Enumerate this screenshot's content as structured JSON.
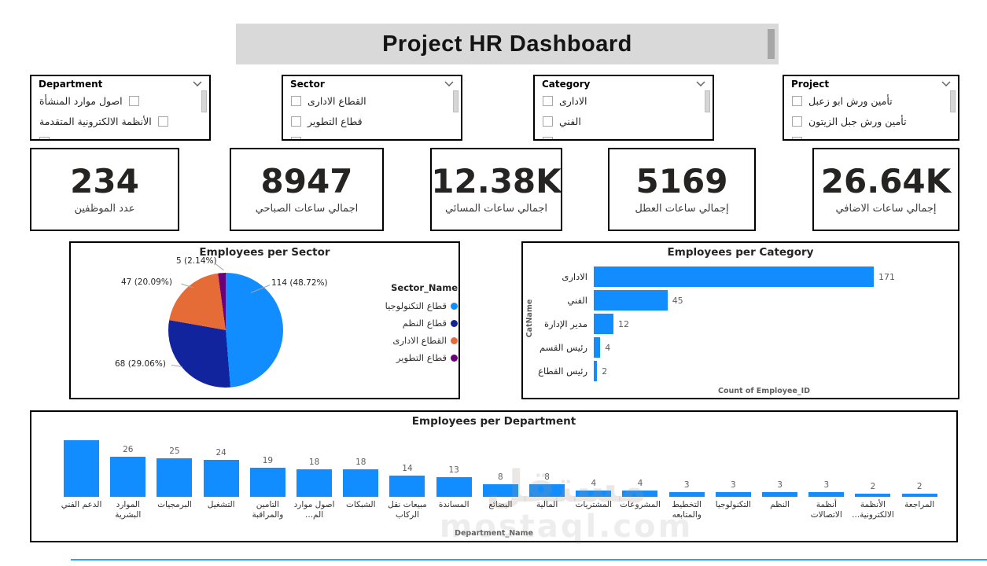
{
  "title": "Project HR Dashboard",
  "slicers": [
    {
      "label": "Department",
      "items": [
        "اصول موارد المنشأة",
        "الأنظمة الالكترونية المتقدمة"
      ]
    },
    {
      "label": "Sector",
      "items": [
        "القطاع الادارى",
        "قطاع التطوير"
      ]
    },
    {
      "label": "Category",
      "items": [
        "الادارى",
        "الفني"
      ]
    },
    {
      "label": "Project",
      "items": [
        "تأمين ورش ابو زعبل",
        "تأمين ورش جبل الزيتون"
      ]
    }
  ],
  "kpis": [
    {
      "value": "234",
      "label": "عدد الموظفين"
    },
    {
      "value": "8947",
      "label": "اجمالي ساعات الصباحي"
    },
    {
      "value": "12.38K",
      "label": "اجمالي ساعات المسائي"
    },
    {
      "value": "5169",
      "label": "إجمالي ساعات العطل"
    },
    {
      "value": "26.64K",
      "label": "إجمالي ساعات الاضافي"
    }
  ],
  "chart_data": [
    {
      "type": "pie",
      "title": "Employees per Sector",
      "legend_title": "Sector_Name",
      "legend_position": "right",
      "slices": [
        {
          "label": "قطاع التكنولوجيا",
          "value": 114,
          "pct": "48.72%",
          "data_label": "114 (48.72%)",
          "color": "#118DFF"
        },
        {
          "label": "قطاع النظم",
          "value": 68,
          "pct": "29.06%",
          "data_label": "68 (29.06%)",
          "color": "#12239E"
        },
        {
          "label": "القطاع الادارى",
          "value": 47,
          "pct": "20.09%",
          "data_label": "47 (20.09%)",
          "color": "#E66C37"
        },
        {
          "label": "قطاع التطوير",
          "value": 5,
          "pct": "2.14%",
          "data_label": "5 (2.14%)",
          "color": "#6B007B"
        }
      ]
    },
    {
      "type": "bar",
      "orientation": "horizontal",
      "title": "Employees per Category",
      "ylabel": "CatName",
      "xlabel": "Count of Employee_ID",
      "categories": [
        "الادارى",
        "الفني",
        "مدير الإدارة",
        "رئيس القسم",
        "رئيس القطاع"
      ],
      "values": [
        171,
        45,
        12,
        4,
        2
      ],
      "bar_color": "#118DFF",
      "grid": false
    },
    {
      "type": "bar",
      "orientation": "vertical",
      "title": "Employees per Department",
      "xlabel": "Department_Name",
      "categories": [
        "الدعم الفني",
        "الموارد البشرية",
        "البرمجيات",
        "التشغيل",
        "التامين والمراقبة",
        "اصول موارد الم...",
        "الشبكات",
        "مبيعات نقل الركاب",
        "المساندة",
        "البضائع",
        "المالية",
        "المشتريات",
        "المشروعات",
        "التخطيط والمتابعه",
        "التكنولوجيا",
        "النظم",
        "أنظمة الاتصالات",
        "الأنظمة الالكترونية...",
        "المراجعة"
      ],
      "values": [
        37,
        26,
        25,
        24,
        19,
        18,
        18,
        14,
        13,
        8,
        8,
        4,
        4,
        3,
        3,
        3,
        3,
        2,
        2
      ],
      "bar_color": "#118DFF",
      "grid": false
    }
  ],
  "watermark": {
    "line1": "مستقل",
    "line2": "mostaql.com"
  },
  "colors": {
    "accent_blue": "#118DFF",
    "navy": "#12239E",
    "orange": "#E66C37",
    "purple": "#6B007B",
    "banner_gray": "#D9D9D9"
  }
}
